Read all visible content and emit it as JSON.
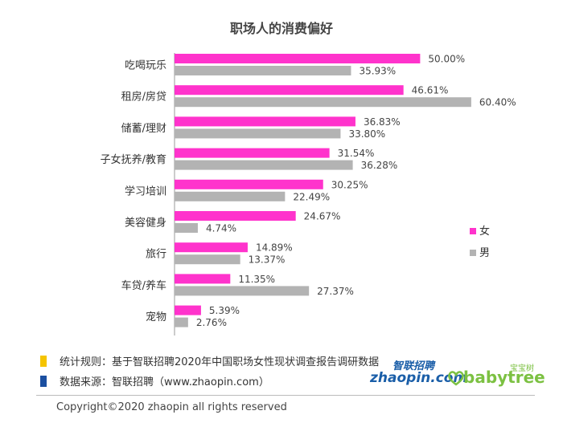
{
  "chart_data": {
    "type": "bar",
    "orientation": "horizontal",
    "title": "职场人的消费偏好",
    "categories": [
      "吃喝玩乐",
      "租房/房贷",
      "储蓄/理财",
      "子女抚养/教育",
      "学习培训",
      "美容健身",
      "旅行",
      "车贷/养车",
      "宠物"
    ],
    "series": [
      {
        "name": "女",
        "color": "#ff33cc",
        "values": [
          50.0,
          46.61,
          36.83,
          31.54,
          30.25,
          24.67,
          14.89,
          11.35,
          5.39
        ],
        "labels": [
          "50.00%",
          "46.61%",
          "36.83%",
          "31.54%",
          "30.25%",
          "24.67%",
          "14.89%",
          "11.35%",
          "5.39%"
        ]
      },
      {
        "name": "男",
        "color": "#b3b3b3",
        "values": [
          35.93,
          60.4,
          33.8,
          36.28,
          22.49,
          4.74,
          13.37,
          27.37,
          2.76
        ],
        "labels": [
          "35.93%",
          "60.40%",
          "33.80%",
          "36.28%",
          "22.49%",
          "4.74%",
          "13.37%",
          "27.37%",
          "2.76%"
        ]
      }
    ],
    "xlim": [
      0,
      65
    ],
    "grid": false,
    "legend": "right"
  },
  "notes": [
    {
      "text": "统计规则：基于智联招聘2020年中国职场女性现状调查报告调研数据",
      "color": "#f5c400"
    },
    {
      "text": "数据来源：智联招聘（www.zhaopin.com）",
      "color": "#1b4fa0"
    }
  ],
  "copyright": "Copyright©2020 zhaopin all rights reserved",
  "logos": {
    "zhaopin_cn": "智联招聘",
    "zhaopin_en": "zhaopin.com",
    "babytree_cn": "宝宝树",
    "babytree_en": "babytree"
  }
}
